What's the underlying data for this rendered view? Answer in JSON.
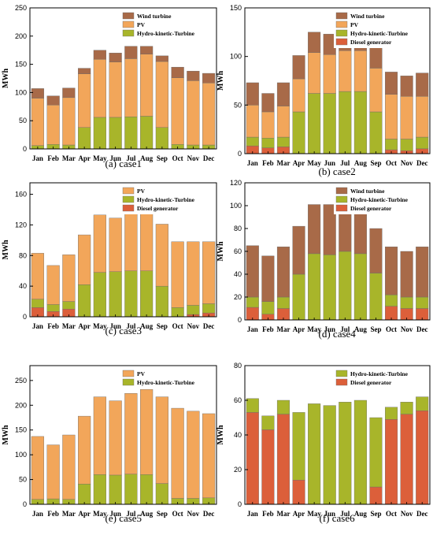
{
  "colors": {
    "Wind turbine": "#a86a48",
    "PV": "#f2a65a",
    "Hydro-kinetic-Turbine": "#a8b52a",
    "Diesel generator": "#dc5f3a"
  },
  "chart_data": [
    {
      "type": "bar",
      "stacked": true,
      "caption_tag": "(a)",
      "caption_text": "case1",
      "ylabel": "MWh",
      "ylim": [
        0,
        250
      ],
      "yticks": [
        0,
        50,
        100,
        150,
        200,
        250
      ],
      "legend_position": "top-right",
      "categories": [
        "Jan",
        "Feb",
        "Mar",
        "Apr",
        "May",
        "Jun",
        "Jul",
        "Aug",
        "Sep",
        "Oct",
        "Nov",
        "Dec"
      ],
      "series": [
        {
          "name": "Hydro-kinetic-Turbine",
          "values": [
            6,
            8,
            7,
            38,
            56,
            56,
            57,
            58,
            38,
            8,
            7,
            7
          ]
        },
        {
          "name": "PV",
          "values": [
            84,
            70,
            84,
            95,
            103,
            98,
            103,
            110,
            117,
            118,
            114,
            110
          ]
        },
        {
          "name": "Wind turbine",
          "values": [
            17,
            16,
            17,
            10,
            16,
            16,
            22,
            14,
            10,
            19,
            17,
            17
          ]
        }
      ]
    },
    {
      "type": "bar",
      "stacked": true,
      "caption_tag": "(b)",
      "caption_text": "case2",
      "ylabel": "MWh",
      "ylim": [
        0,
        150
      ],
      "yticks": [
        0,
        50,
        100,
        150
      ],
      "legend_position": "top-right",
      "categories": [
        "Jan",
        "Feb",
        "Mar",
        "Apr",
        "May",
        "Jun",
        "Jul",
        "Aug",
        "Sep",
        "Oct",
        "Nov",
        "Dec"
      ],
      "series": [
        {
          "name": "Diesel generator",
          "values": [
            8,
            6,
            7,
            0,
            0,
            0,
            0,
            0,
            0,
            4,
            3,
            5
          ]
        },
        {
          "name": "Hydro-kinetic-Turbine",
          "values": [
            9,
            10,
            10,
            43,
            62,
            62,
            64,
            64,
            43,
            11,
            12,
            12
          ]
        },
        {
          "name": "PV",
          "values": [
            33,
            27,
            32,
            34,
            42,
            40,
            42,
            42,
            45,
            46,
            44,
            42
          ]
        },
        {
          "name": "Wind turbine",
          "values": [
            23,
            19,
            24,
            24,
            21,
            21,
            23,
            22,
            21,
            23,
            21,
            24
          ]
        }
      ]
    },
    {
      "type": "bar",
      "stacked": true,
      "caption_tag": "(c)",
      "caption_text": "case3",
      "ylabel": "MWh",
      "ylim": [
        0,
        175
      ],
      "yticks": [
        0,
        40,
        80,
        120,
        160
      ],
      "legend_position": "top-right",
      "categories": [
        "Jan",
        "Feb",
        "Mar",
        "Apr",
        "May",
        "Jun",
        "Jul",
        "Aug",
        "Sep",
        "Oct",
        "Nov",
        "Dec"
      ],
      "series": [
        {
          "name": "Diesel generator",
          "values": [
            12,
            7,
            10,
            0,
            0,
            0,
            0,
            0,
            0,
            0,
            3,
            5
          ]
        },
        {
          "name": "Hydro-kinetic-Turbine",
          "values": [
            11,
            9,
            10,
            42,
            58,
            59,
            60,
            60,
            40,
            12,
            12,
            12
          ]
        },
        {
          "name": "PV",
          "values": [
            60,
            51,
            61,
            65,
            75,
            70,
            77,
            80,
            81,
            86,
            83,
            81
          ]
        }
      ]
    },
    {
      "type": "bar",
      "stacked": true,
      "caption_tag": "(d)",
      "caption_text": "case4",
      "ylabel": "MWh",
      "ylim": [
        0,
        120
      ],
      "yticks": [
        0,
        20,
        40,
        60,
        80,
        100,
        120
      ],
      "legend_position": "top-right",
      "categories": [
        "Jan",
        "Feb",
        "Mar",
        "Apr",
        "May",
        "Jun",
        "Jul",
        "Aug",
        "Sep",
        "Oct",
        "Nov",
        "Dec"
      ],
      "series": [
        {
          "name": "Diesel generator",
          "values": [
            11,
            5,
            10,
            0,
            0,
            0,
            0,
            0,
            0,
            12,
            10,
            10
          ]
        },
        {
          "name": "Hydro-kinetic-Turbine",
          "values": [
            9,
            11,
            10,
            40,
            58,
            57,
            60,
            58,
            41,
            10,
            10,
            10
          ]
        },
        {
          "name": "Wind turbine",
          "values": [
            45,
            40,
            44,
            42,
            43,
            44,
            43,
            42,
            39,
            42,
            40,
            44
          ]
        }
      ]
    },
    {
      "type": "bar",
      "stacked": true,
      "caption_tag": "(e)",
      "caption_text": "case5",
      "ylabel": "MWh",
      "ylim": [
        0,
        280
      ],
      "yticks": [
        0,
        50,
        100,
        150,
        200,
        250
      ],
      "legend_position": "top-right",
      "categories": [
        "Jan",
        "Feb",
        "Mar",
        "Apr",
        "May",
        "Jun",
        "Jul",
        "Aug",
        "Sep",
        "Oct",
        "Nov",
        "Dec"
      ],
      "series": [
        {
          "name": "Hydro-kinetic-Turbine",
          "values": [
            10,
            11,
            10,
            41,
            60,
            59,
            61,
            60,
            42,
            12,
            12,
            13
          ]
        },
        {
          "name": "PV",
          "values": [
            127,
            109,
            130,
            137,
            157,
            150,
            163,
            172,
            175,
            182,
            176,
            170
          ]
        }
      ]
    },
    {
      "type": "bar",
      "stacked": true,
      "caption_tag": "(f)",
      "caption_text": "case6",
      "ylabel": "MWh",
      "ylim": [
        0,
        80
      ],
      "yticks": [
        0,
        20,
        40,
        60,
        80
      ],
      "legend_position": "top-right",
      "categories": [
        "Jan",
        "Feb",
        "Mar",
        "Apr",
        "May",
        "Jun",
        "Jul",
        "Aug",
        "Sep",
        "Oct",
        "Nov",
        "Dec"
      ],
      "series": [
        {
          "name": "Diesel generator",
          "values": [
            53,
            43,
            52,
            14,
            0,
            0,
            0,
            0,
            10,
            49,
            52,
            54
          ]
        },
        {
          "name": "Hydro-kinetic-Turbine",
          "values": [
            8,
            8,
            8,
            39,
            58,
            57,
            59,
            60,
            40,
            7,
            7,
            8
          ]
        }
      ]
    }
  ]
}
